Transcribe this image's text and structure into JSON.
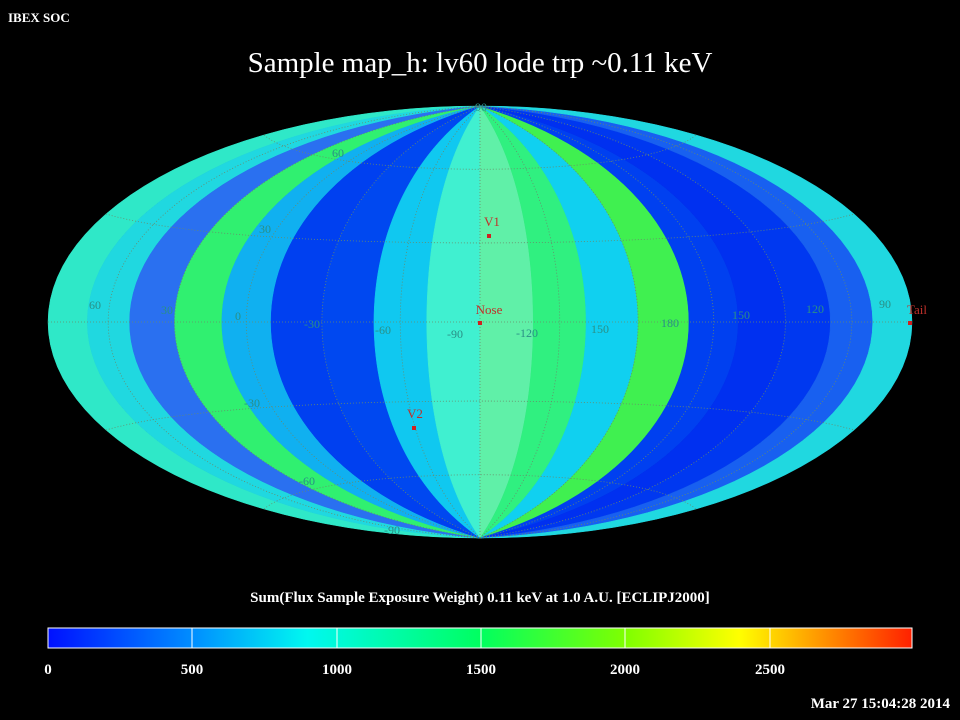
{
  "header": {
    "org": "IBEX SOC",
    "title": "Sample map_h: lv60 lode trp ~0.11 keV"
  },
  "map": {
    "longitude_labels": [
      "60",
      "30",
      "0",
      "-30",
      "-60",
      "-90",
      "-120",
      "150",
      "180",
      "150",
      "120",
      "90"
    ],
    "latitude_labels": [
      "90",
      "60",
      "30",
      "-30",
      "-60",
      "-90"
    ],
    "markers": [
      {
        "label": "V1"
      },
      {
        "label": "Nose"
      },
      {
        "label": "V2"
      },
      {
        "label": "Tail"
      }
    ]
  },
  "colorbar": {
    "label": "Sum(Flux Sample Exposure Weight)  0.11 keV at 1.0 A.U. [ECLIPJ2000]",
    "ticks": [
      "0",
      "500",
      "1000",
      "1500",
      "2000",
      "2500"
    ]
  },
  "footer": {
    "timestamp": "Mar 27 15:04:28 2014"
  }
}
